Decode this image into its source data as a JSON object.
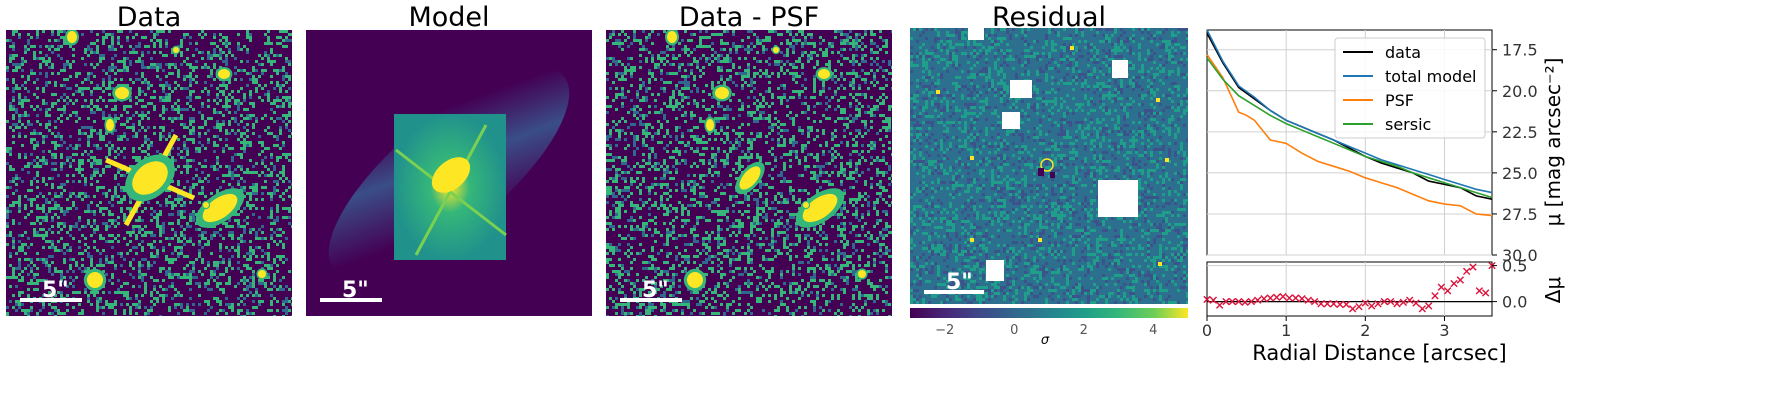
{
  "panels": [
    {
      "title": "Data",
      "scalebar_label": "5\""
    },
    {
      "title": "Model",
      "scalebar_label": "5\""
    },
    {
      "title": "Data - PSF",
      "scalebar_label": "5\""
    },
    {
      "title": "Residual",
      "scalebar_label": "5\""
    }
  ],
  "colors": {
    "viridis_dark": "#440154",
    "viridis_blue": "#31688e",
    "viridis_teal": "#35b779",
    "viridis_yellow": "#fde725",
    "data_line": "#000000",
    "total_model": "#1f77b4",
    "psf": "#ff7f0e",
    "sersic": "#2ca02c",
    "residual_marker": "#dc143c"
  },
  "colorbar": {
    "label": "σ",
    "ticks": [
      "−2",
      "0",
      "2",
      "4"
    ],
    "tick_values": [
      -2,
      0,
      2,
      4
    ],
    "range": [
      -3,
      5
    ]
  },
  "chart_data": [
    {
      "type": "line",
      "title": "",
      "xlabel": "",
      "ylabel": "μ [mag arcsec⁻²]",
      "xlim": [
        0,
        3.6
      ],
      "ylim": [
        30.0,
        16.3
      ],
      "y_inverted": true,
      "y_axis_side": "right",
      "grid": true,
      "legend_position": "top-right",
      "yticks": [
        17.5,
        20.0,
        22.5,
        25.0,
        27.5,
        30.0
      ],
      "ytick_labels": [
        "17.5",
        "20.0",
        "22.5",
        "25.0",
        "27.5",
        "30.0"
      ],
      "series": [
        {
          "name": "data",
          "color": "#000000",
          "x": [
            0.0,
            0.2,
            0.4,
            0.6,
            0.8,
            1.0,
            1.2,
            1.4,
            1.6,
            1.8,
            2.0,
            2.2,
            2.4,
            2.6,
            2.8,
            3.0,
            3.2,
            3.4,
            3.6
          ],
          "y": [
            16.5,
            18.3,
            19.8,
            20.5,
            21.2,
            21.8,
            22.2,
            22.6,
            23.0,
            23.5,
            24.0,
            24.4,
            24.7,
            25.0,
            25.5,
            25.7,
            25.9,
            26.4,
            26.6
          ]
        },
        {
          "name": "total model",
          "color": "#1f77b4",
          "x": [
            0.0,
            0.2,
            0.4,
            0.6,
            0.8,
            1.0,
            1.2,
            1.4,
            1.6,
            1.8,
            2.0,
            2.2,
            2.4,
            2.6,
            2.8,
            3.0,
            3.2,
            3.4,
            3.6
          ],
          "y": [
            16.3,
            18.2,
            19.7,
            20.4,
            21.2,
            21.8,
            22.2,
            22.6,
            23.0,
            23.4,
            23.8,
            24.2,
            24.5,
            24.8,
            25.1,
            25.4,
            25.7,
            26.0,
            26.2
          ]
        },
        {
          "name": "PSF",
          "color": "#ff7f0e",
          "x": [
            0.0,
            0.2,
            0.4,
            0.5,
            0.6,
            0.8,
            1.0,
            1.2,
            1.4,
            1.6,
            1.8,
            2.0,
            2.2,
            2.4,
            2.6,
            2.8,
            3.0,
            3.2,
            3.4,
            3.6
          ],
          "y": [
            17.8,
            19.2,
            21.3,
            21.5,
            21.8,
            23.0,
            23.2,
            23.8,
            24.3,
            24.6,
            24.9,
            25.3,
            25.6,
            25.9,
            26.3,
            26.7,
            26.9,
            27.0,
            27.5,
            27.6
          ]
        },
        {
          "name": "sersic",
          "color": "#2ca02c",
          "x": [
            0.0,
            0.2,
            0.4,
            0.6,
            0.8,
            1.0,
            1.2,
            1.4,
            1.6,
            1.8,
            2.0,
            2.2,
            2.4,
            2.6,
            2.8,
            3.0,
            3.2,
            3.4,
            3.6
          ],
          "y": [
            18.0,
            19.3,
            20.3,
            20.9,
            21.5,
            22.0,
            22.4,
            22.8,
            23.2,
            23.6,
            24.0,
            24.3,
            24.6,
            25.0,
            25.3,
            25.6,
            25.9,
            26.2,
            26.5
          ]
        }
      ]
    },
    {
      "type": "scatter",
      "title": "",
      "xlabel": "Radial Distance [arcsec]",
      "ylabel": "Δμ",
      "xlim": [
        0,
        3.6
      ],
      "ylim": [
        -0.2,
        0.55
      ],
      "y_axis_side": "right",
      "grid": true,
      "xticks": [
        0,
        1,
        2,
        3
      ],
      "xtick_labels": [
        "0",
        "1",
        "2",
        "3"
      ],
      "yticks": [
        0.0,
        0.5
      ],
      "ytick_labels": [
        "0.0",
        "0.5"
      ],
      "reference_line": 0.0,
      "marker": "x",
      "x": [
        0.0,
        0.08,
        0.16,
        0.24,
        0.32,
        0.4,
        0.48,
        0.56,
        0.64,
        0.72,
        0.8,
        0.88,
        0.96,
        1.04,
        1.12,
        1.2,
        1.28,
        1.36,
        1.44,
        1.52,
        1.6,
        1.68,
        1.76,
        1.84,
        1.92,
        2.0,
        2.08,
        2.16,
        2.24,
        2.32,
        2.4,
        2.48,
        2.56,
        2.64,
        2.72,
        2.8,
        2.88,
        2.96,
        3.04,
        3.12,
        3.2,
        3.28,
        3.36,
        3.44,
        3.52,
        3.6
      ],
      "y": [
        0.03,
        0.02,
        -0.05,
        0.0,
        0.0,
        0.0,
        -0.01,
        0.0,
        0.02,
        0.04,
        0.05,
        0.06,
        0.07,
        0.05,
        0.05,
        0.04,
        0.02,
        0.0,
        -0.03,
        -0.03,
        -0.03,
        -0.04,
        -0.04,
        -0.1,
        -0.07,
        -0.02,
        -0.06,
        -0.03,
        0.0,
        0.0,
        -0.03,
        -0.01,
        0.02,
        -0.02,
        -0.1,
        -0.06,
        0.08,
        0.2,
        0.15,
        0.25,
        0.3,
        0.42,
        0.48,
        0.15,
        0.12,
        0.5
      ]
    }
  ]
}
